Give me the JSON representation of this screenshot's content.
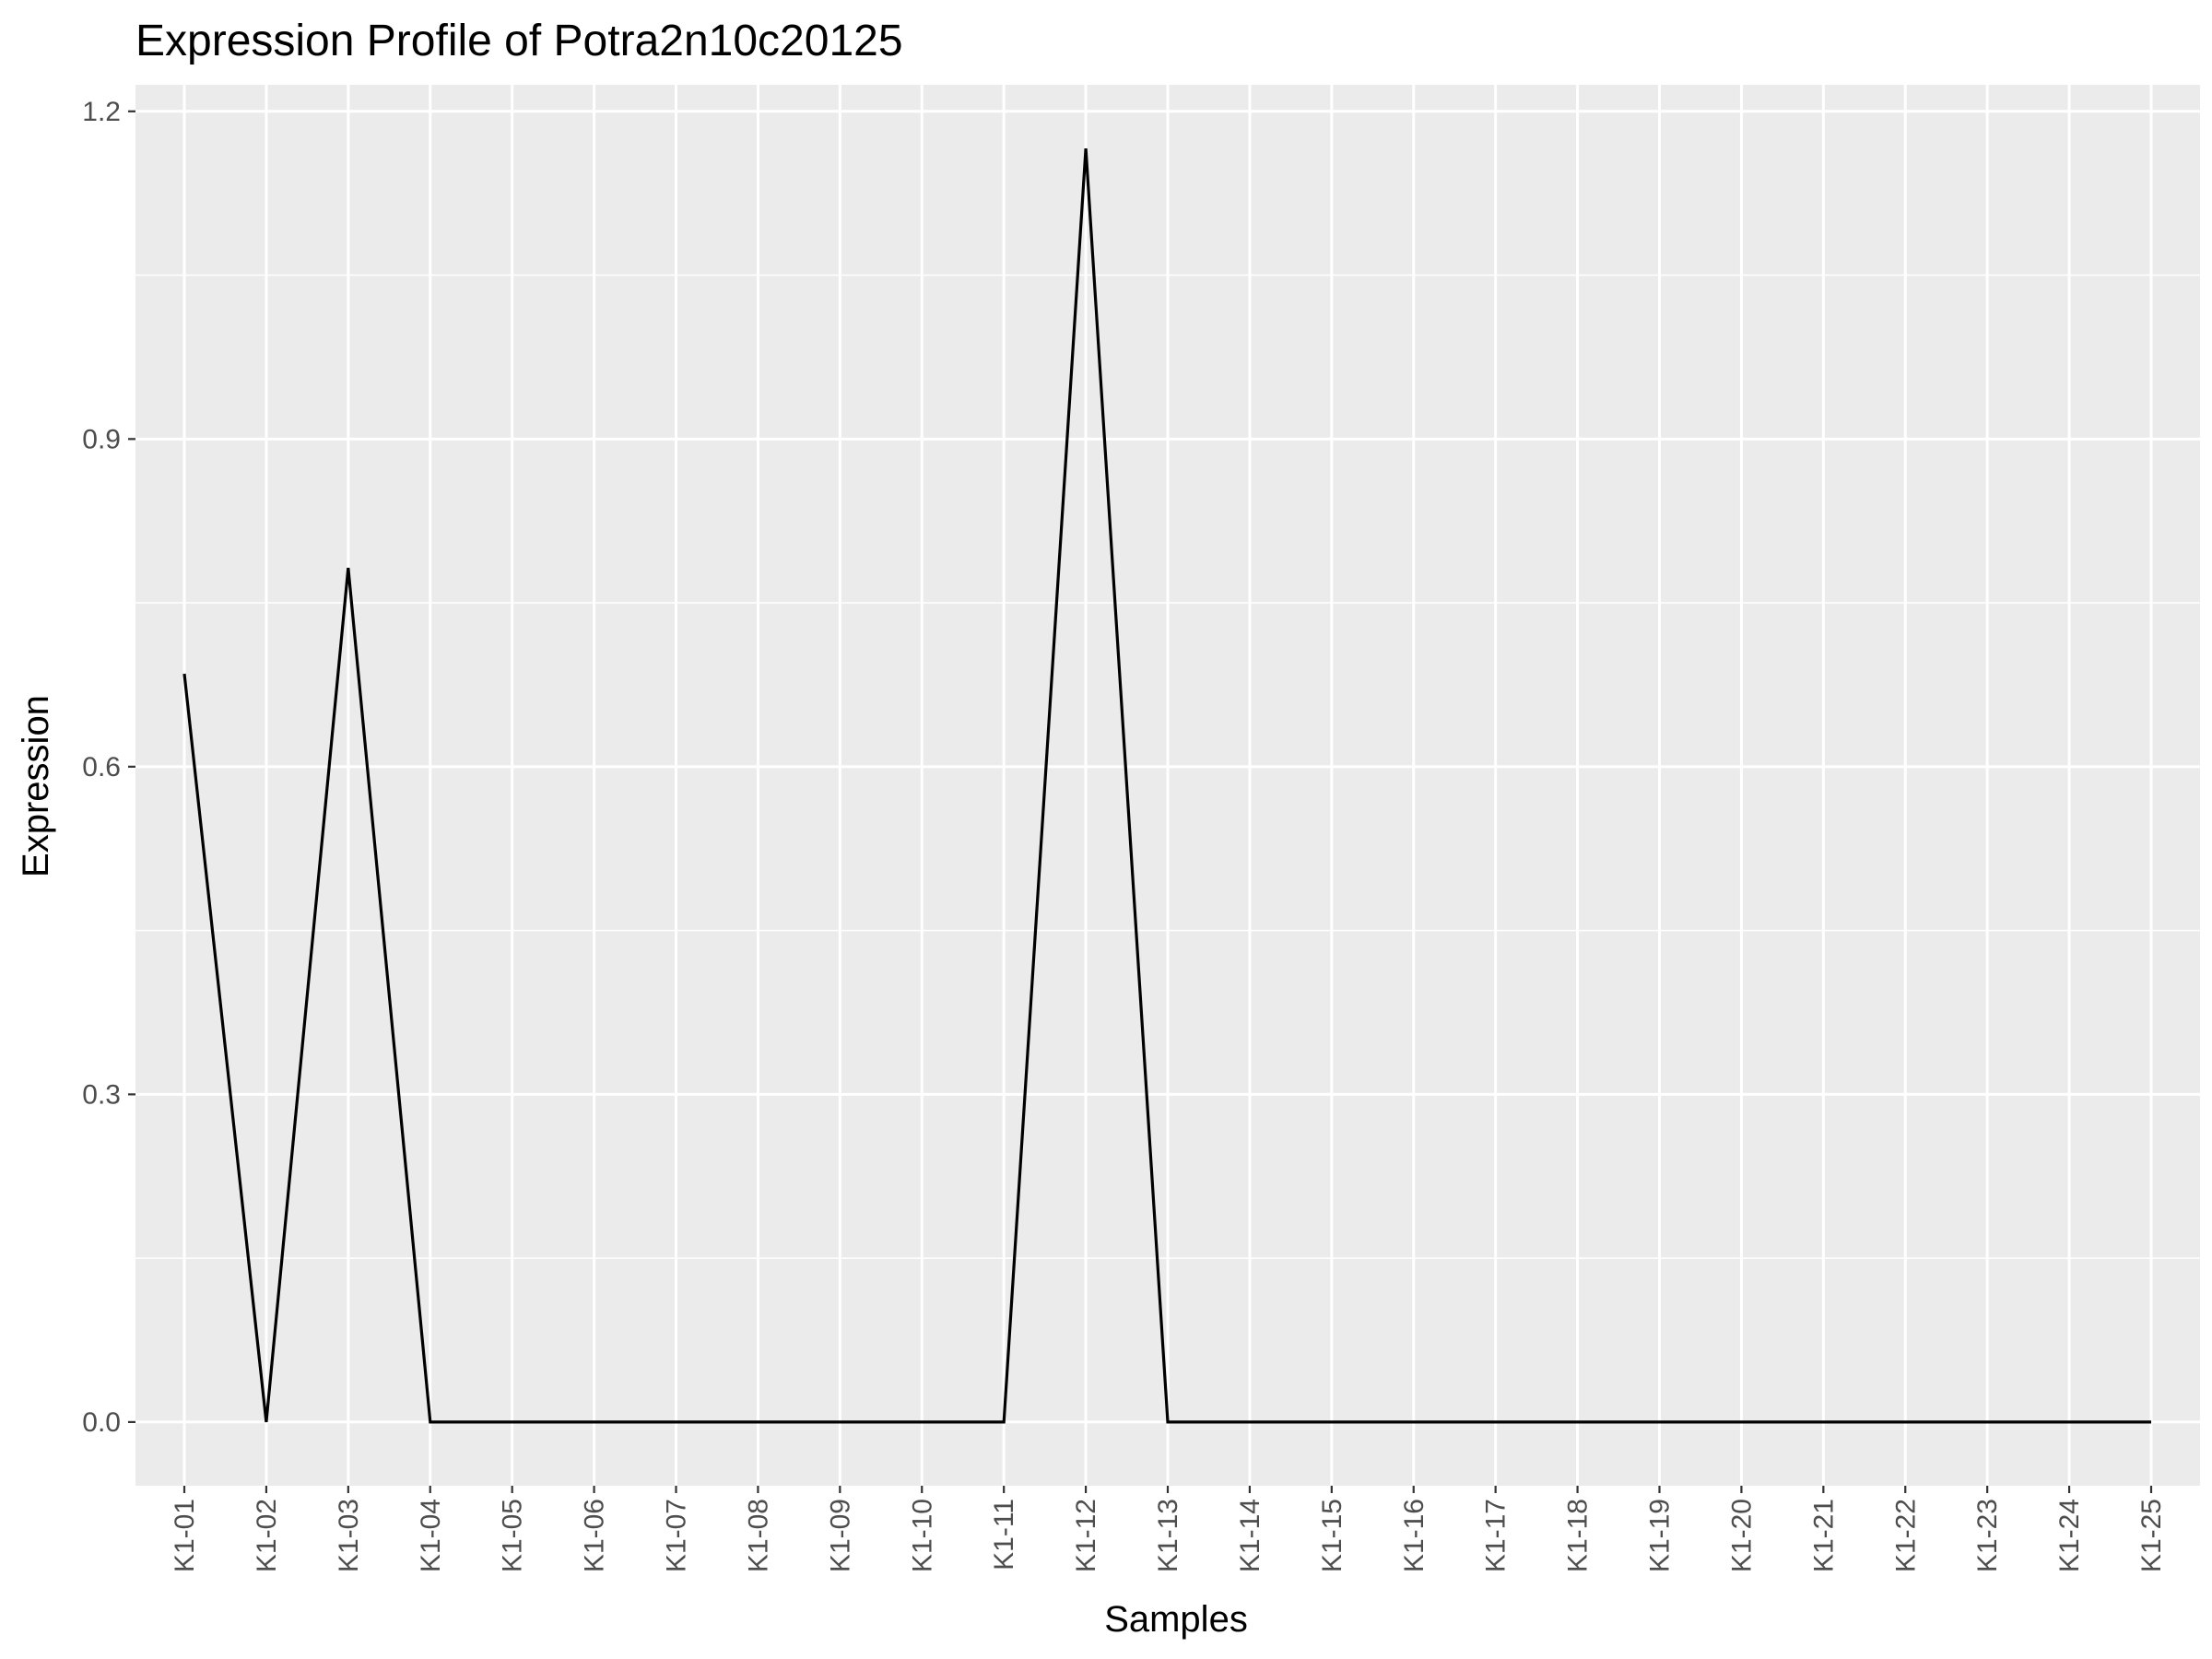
{
  "chart_data": {
    "type": "line",
    "title": "Expression Profile of Potra2n10c20125",
    "xlabel": "Samples",
    "ylabel": "Expression",
    "categories": [
      "K1-01",
      "K1-02",
      "K1-03",
      "K1-04",
      "K1-05",
      "K1-06",
      "K1-07",
      "K1-08",
      "K1-09",
      "K1-10",
      "K1-11",
      "K1-12",
      "K1-13",
      "K1-14",
      "K1-15",
      "K1-16",
      "K1-17",
      "K1-18",
      "K1-19",
      "K1-20",
      "K1-21",
      "K1-22",
      "K1-23",
      "K1-24",
      "K1-25"
    ],
    "series": [
      {
        "values": [
          0.685,
          0.0,
          0.782,
          0.0,
          0.0,
          0.0,
          0.0,
          0.0,
          0.0,
          0.0,
          0.0,
          1.166,
          0.0,
          0.0,
          0.0,
          0.0,
          0.0,
          0.0,
          0.0,
          0.0,
          0.0,
          0.0,
          0.0,
          0.0,
          0.0
        ]
      }
    ],
    "ylim": [
      -0.0583,
      1.2243
    ],
    "yticks": [
      0.0,
      0.3,
      0.6,
      0.9,
      1.2
    ],
    "ytick_labels": [
      "0.0",
      "0.3",
      "0.6",
      "0.9",
      "1.2"
    ],
    "grid": true,
    "legend": "none",
    "colors": {
      "panel_background": "#ebebeb",
      "grid_line": "#ffffff",
      "series_line": "#000000",
      "tick_mark": "#333333",
      "tick_label": "#4d4d4d"
    }
  }
}
